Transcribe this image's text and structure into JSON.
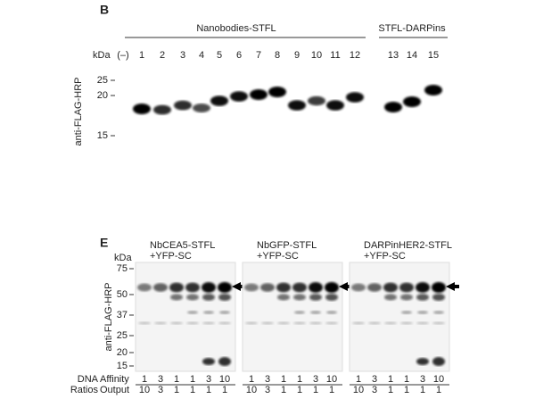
{
  "panel_b": {
    "label": "B",
    "groups": [
      "Nanobodies-STFL",
      "STFL-DARPins"
    ],
    "kda": "kDa",
    "lanes": [
      "(–)",
      "1",
      "2",
      "3",
      "4",
      "5",
      "6",
      "7",
      "8",
      "9",
      "10",
      "11",
      "12",
      "13",
      "14",
      "15"
    ],
    "markers": [
      "25",
      "20",
      "15"
    ],
    "y_label": "anti-FLAG-HRP"
  },
  "panel_e": {
    "label": "E",
    "kda": "kDa",
    "groups": [
      {
        "title": [
          "NbCEA5-STFL",
          "+YFP-SC"
        ],
        "affinity": [
          "1",
          "3",
          "1",
          "1",
          "3",
          "10"
        ],
        "output": [
          "10",
          "3",
          "1",
          "1",
          "1",
          "1"
        ]
      },
      {
        "title": [
          "NbGFP-STFL",
          "+YFP-SC"
        ],
        "affinity": [
          "1",
          "3",
          "1",
          "1",
          "3",
          "10"
        ],
        "output": [
          "10",
          "3",
          "1",
          "1",
          "1",
          "1"
        ]
      },
      {
        "title": [
          "DARPinHER2-STFL",
          "+YFP-SC"
        ],
        "affinity": [
          "1",
          "3",
          "1",
          "1",
          "3",
          "10"
        ],
        "output": [
          "10",
          "3",
          "1",
          "1",
          "1",
          "1"
        ]
      }
    ],
    "markers": [
      "75",
      "50",
      "37",
      "25",
      "20",
      "15"
    ],
    "y_label": "anti-FLAG-HRP",
    "row_title": [
      "DNA",
      "Ratios"
    ],
    "rows": [
      "Affinity",
      "Output"
    ]
  }
}
